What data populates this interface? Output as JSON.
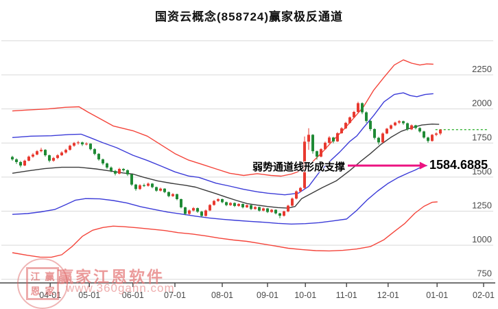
{
  "title": "国资云概念(858724)赢家极反通道",
  "annotation": {
    "text": "弱势通道线形成支撑",
    "value": "1584.6885",
    "points_to": "lower_blue_channel_line_end"
  },
  "watermark": {
    "brand": "赢家江恩软件",
    "url": "www.360gann.com",
    "seal_chars": [
      "江",
      "赢",
      "恩",
      "家"
    ]
  },
  "colors": {
    "up_candle": "#e8392f",
    "down_candle": "#1f8a35",
    "channel_red": "#f4443a",
    "channel_blue": "#3b3bd8",
    "channel_mid": "#3a3a3a",
    "grid": "#d9d9d9",
    "axis": "#444444",
    "tick_text": "#4a4a4a",
    "arrow": "#ec1380",
    "last_price": "#00a000",
    "background": "#ffffff"
  },
  "chart_data": {
    "type": "candlestick",
    "title": "国资云概念(858724)赢家极反通道",
    "legend": "none",
    "grid": "horizontal-only",
    "y_axis": {
      "min": 750,
      "max": 2500,
      "grid_step": 250,
      "grid_values": [
        2500,
        2250,
        2000,
        1750,
        1500,
        1250,
        1000,
        750
      ],
      "labels": [
        2250,
        2000,
        1750,
        1500,
        1250,
        1000,
        750
      ]
    },
    "x_ticks": [
      {
        "label": "04-01",
        "i": 9.2
      },
      {
        "label": "05-01",
        "i": 18.7
      },
      {
        "label": "06-01",
        "i": 29.3
      },
      {
        "label": "07-01",
        "i": 39.5
      },
      {
        "label": "08-01",
        "i": 51.0
      },
      {
        "label": "09-01",
        "i": 62.0
      },
      {
        "label": "10-01",
        "i": 71.2
      },
      {
        "label": "11-01",
        "i": 81.2
      },
      {
        "label": "12-01",
        "i": 91.3
      },
      {
        "label": "01-01",
        "i": 103.2
      },
      {
        "label": "02-01",
        "i": 114.5
      }
    ],
    "candles_ohlc": [
      [
        1648,
        1656,
        1620,
        1630
      ],
      [
        1630,
        1638,
        1596,
        1610
      ],
      [
        1610,
        1618,
        1572,
        1585
      ],
      [
        1585,
        1628,
        1580,
        1620
      ],
      [
        1620,
        1658,
        1615,
        1650
      ],
      [
        1650,
        1676,
        1642,
        1665
      ],
      [
        1665,
        1698,
        1660,
        1690
      ],
      [
        1690,
        1715,
        1682,
        1700
      ],
      [
        1700,
        1705,
        1650,
        1660
      ],
      [
        1660,
        1665,
        1608,
        1620
      ],
      [
        1620,
        1648,
        1612,
        1640
      ],
      [
        1640,
        1668,
        1632,
        1660
      ],
      [
        1660,
        1690,
        1655,
        1680
      ],
      [
        1680,
        1708,
        1672,
        1700
      ],
      [
        1700,
        1738,
        1695,
        1730
      ],
      [
        1730,
        1758,
        1722,
        1750
      ],
      [
        1750,
        1766,
        1738,
        1755
      ],
      [
        1755,
        1760,
        1728,
        1740
      ],
      [
        1740,
        1755,
        1732,
        1745
      ],
      [
        1745,
        1748,
        1696,
        1705
      ],
      [
        1705,
        1712,
        1660,
        1670
      ],
      [
        1670,
        1676,
        1620,
        1630
      ],
      [
        1630,
        1636,
        1588,
        1600
      ],
      [
        1600,
        1606,
        1560,
        1570
      ],
      [
        1570,
        1578,
        1535,
        1545
      ],
      [
        1545,
        1552,
        1512,
        1525
      ],
      [
        1525,
        1568,
        1520,
        1560
      ],
      [
        1560,
        1566,
        1540,
        1550
      ],
      [
        1550,
        1556,
        1508,
        1520
      ],
      [
        1520,
        1524,
        1436,
        1445
      ],
      [
        1445,
        1450,
        1400,
        1412
      ],
      [
        1412,
        1448,
        1406,
        1440
      ],
      [
        1440,
        1452,
        1428,
        1436
      ],
      [
        1436,
        1460,
        1430,
        1452
      ],
      [
        1452,
        1456,
        1418,
        1426
      ],
      [
        1426,
        1430,
        1392,
        1400
      ],
      [
        1400,
        1422,
        1394,
        1415
      ],
      [
        1415,
        1418,
        1382,
        1390
      ],
      [
        1390,
        1394,
        1352,
        1360
      ],
      [
        1360,
        1382,
        1354,
        1375
      ],
      [
        1375,
        1378,
        1330,
        1338
      ],
      [
        1338,
        1342,
        1270,
        1278
      ],
      [
        1278,
        1282,
        1220,
        1230
      ],
      [
        1230,
        1262,
        1222,
        1255
      ],
      [
        1255,
        1280,
        1248,
        1272
      ],
      [
        1272,
        1276,
        1238,
        1246
      ],
      [
        1246,
        1252,
        1205,
        1215
      ],
      [
        1215,
        1262,
        1210,
        1255
      ],
      [
        1255,
        1302,
        1250,
        1295
      ],
      [
        1295,
        1332,
        1290,
        1325
      ],
      [
        1325,
        1345,
        1318,
        1338
      ],
      [
        1338,
        1342,
        1308,
        1316
      ],
      [
        1316,
        1320,
        1286,
        1294
      ],
      [
        1294,
        1316,
        1288,
        1310
      ],
      [
        1310,
        1314,
        1280,
        1288
      ],
      [
        1288,
        1308,
        1282,
        1303
      ],
      [
        1303,
        1306,
        1270,
        1278
      ],
      [
        1278,
        1300,
        1273,
        1294
      ],
      [
        1294,
        1297,
        1258,
        1266
      ],
      [
        1266,
        1286,
        1260,
        1280
      ],
      [
        1280,
        1283,
        1246,
        1254
      ],
      [
        1254,
        1276,
        1248,
        1270
      ],
      [
        1270,
        1273,
        1236,
        1244
      ],
      [
        1244,
        1266,
        1238,
        1260
      ],
      [
        1260,
        1263,
        1226,
        1234
      ],
      [
        1234,
        1238,
        1198,
        1216
      ],
      [
        1216,
        1254,
        1210,
        1248
      ],
      [
        1248,
        1296,
        1242,
        1290
      ],
      [
        1290,
        1350,
        1284,
        1342
      ],
      [
        1342,
        1402,
        1336,
        1395
      ],
      [
        1395,
        1428,
        1388,
        1420
      ],
      [
        1420,
        1798,
        1412,
        1760
      ],
      [
        1760,
        1858,
        1700,
        1810
      ],
      [
        1810,
        1815,
        1672,
        1690
      ],
      [
        1690,
        1695,
        1628,
        1650
      ],
      [
        1650,
        1712,
        1645,
        1705
      ],
      [
        1705,
        1760,
        1700,
        1752
      ],
      [
        1752,
        1800,
        1745,
        1790
      ],
      [
        1790,
        1795,
        1748,
        1762
      ],
      [
        1762,
        1830,
        1758,
        1822
      ],
      [
        1822,
        1866,
        1818,
        1858
      ],
      [
        1858,
        1905,
        1852,
        1898
      ],
      [
        1898,
        1945,
        1892,
        1938
      ],
      [
        1938,
        1986,
        1932,
        1978
      ],
      [
        1978,
        2052,
        1972,
        2042
      ],
      [
        2042,
        2048,
        1962,
        1975
      ],
      [
        1975,
        1982,
        1898,
        1912
      ],
      [
        1912,
        1918,
        1838,
        1852
      ],
      [
        1852,
        1858,
        1775,
        1788
      ],
      [
        1788,
        1795,
        1738,
        1755
      ],
      [
        1755,
        1828,
        1750,
        1820
      ],
      [
        1820,
        1860,
        1815,
        1855
      ],
      [
        1855,
        1886,
        1848,
        1880
      ],
      [
        1880,
        1906,
        1874,
        1900
      ],
      [
        1900,
        1918,
        1890,
        1910
      ],
      [
        1910,
        1914,
        1884,
        1895
      ],
      [
        1895,
        1900,
        1840,
        1850
      ],
      [
        1850,
        1886,
        1845,
        1880
      ],
      [
        1880,
        1884,
        1850,
        1860
      ],
      [
        1860,
        1865,
        1826,
        1835
      ],
      [
        1835,
        1840,
        1782,
        1790
      ],
      [
        1790,
        1796,
        1752,
        1765
      ],
      [
        1765,
        1816,
        1760,
        1810
      ],
      [
        1810,
        1828,
        1800,
        1820
      ],
      [
        1820,
        1852,
        1808,
        1848
      ]
    ],
    "lines": {
      "upper_red": [
        [
          0,
          1985
        ],
        [
          3.7,
          1992
        ],
        [
          8.7,
          2000
        ],
        [
          12.8,
          2012
        ],
        [
          16.2,
          2016
        ],
        [
          18.3,
          1978
        ],
        [
          21.2,
          1930
        ],
        [
          24.5,
          1875
        ],
        [
          29.3,
          1840
        ],
        [
          32.8,
          1800
        ],
        [
          36.2,
          1735
        ],
        [
          39.5,
          1672
        ],
        [
          42.8,
          1625
        ],
        [
          46.2,
          1592
        ],
        [
          49.5,
          1560
        ],
        [
          52.8,
          1528
        ],
        [
          56.2,
          1512
        ],
        [
          59.5,
          1525
        ],
        [
          62.8,
          1512
        ],
        [
          65.3,
          1507
        ],
        [
          67.8,
          1522
        ],
        [
          70.3,
          1548
        ],
        [
          72.8,
          1608
        ],
        [
          75.3,
          1682
        ],
        [
          77.8,
          1765
        ],
        [
          80.3,
          1842
        ],
        [
          82.8,
          1928
        ],
        [
          85.3,
          2015
        ],
        [
          87.8,
          2138
        ],
        [
          90.3,
          2232
        ],
        [
          92.8,
          2322
        ],
        [
          95,
          2360
        ],
        [
          97,
          2336
        ],
        [
          99,
          2322
        ],
        [
          100.7,
          2330
        ],
        [
          102.3,
          2328
        ]
      ],
      "upper_blue": [
        [
          0,
          1790
        ],
        [
          4.5,
          1800
        ],
        [
          9.5,
          1803
        ],
        [
          13.7,
          1812
        ],
        [
          16.7,
          1815
        ],
        [
          19,
          1788
        ],
        [
          22,
          1752
        ],
        [
          25.3,
          1716
        ],
        [
          29.3,
          1660
        ],
        [
          32.8,
          1622
        ],
        [
          36.2,
          1580
        ],
        [
          39.5,
          1538
        ],
        [
          42.8,
          1508
        ],
        [
          45.3,
          1498
        ],
        [
          49.5,
          1455
        ],
        [
          52.8,
          1434
        ],
        [
          56.2,
          1410
        ],
        [
          59.5,
          1392
        ],
        [
          62,
          1382
        ],
        [
          66.2,
          1370
        ],
        [
          69.5,
          1382
        ],
        [
          72,
          1432
        ],
        [
          74.5,
          1532
        ],
        [
          77,
          1612
        ],
        [
          79.5,
          1682
        ],
        [
          82,
          1762
        ],
        [
          83.7,
          1802
        ],
        [
          85.3,
          1862
        ],
        [
          87.8,
          1952
        ],
        [
          90.3,
          2052
        ],
        [
          92.8,
          2106
        ],
        [
          95,
          2118
        ],
        [
          96.7,
          2098
        ],
        [
          98.3,
          2090
        ],
        [
          100.3,
          2106
        ],
        [
          102.3,
          2112
        ]
      ],
      "middle": [
        [
          0,
          1528
        ],
        [
          3.7,
          1545
        ],
        [
          7.8,
          1562
        ],
        [
          12,
          1572
        ],
        [
          16.2,
          1572
        ],
        [
          20.3,
          1560
        ],
        [
          23.7,
          1545
        ],
        [
          27,
          1530
        ],
        [
          29.3,
          1522
        ],
        [
          32,
          1498
        ],
        [
          35.3,
          1472
        ],
        [
          38.7,
          1454
        ],
        [
          42,
          1440
        ],
        [
          44.5,
          1426
        ],
        [
          47,
          1402
        ],
        [
          49.5,
          1378
        ],
        [
          52,
          1352
        ],
        [
          54.5,
          1328
        ],
        [
          57,
          1306
        ],
        [
          59.5,
          1294
        ],
        [
          62,
          1284
        ],
        [
          64.5,
          1276
        ],
        [
          67,
          1272
        ],
        [
          68.7,
          1284
        ],
        [
          70.3,
          1342
        ],
        [
          72.8,
          1382
        ],
        [
          75.3,
          1422
        ],
        [
          78.7,
          1472
        ],
        [
          82,
          1548
        ],
        [
          84.5,
          1612
        ],
        [
          87,
          1672
        ],
        [
          89.5,
          1738
        ],
        [
          92,
          1792
        ],
        [
          94.5,
          1836
        ],
        [
          97,
          1862
        ],
        [
          99.5,
          1882
        ],
        [
          102,
          1889
        ],
        [
          103.7,
          1887
        ]
      ],
      "lower_blue": [
        [
          0,
          1226
        ],
        [
          3.7,
          1232
        ],
        [
          7,
          1245
        ],
        [
          10.3,
          1262
        ],
        [
          12.8,
          1295
        ],
        [
          15.3,
          1330
        ],
        [
          17.8,
          1342
        ],
        [
          21.2,
          1340
        ],
        [
          24.5,
          1328
        ],
        [
          27.8,
          1310
        ],
        [
          31.2,
          1282
        ],
        [
          34.5,
          1262
        ],
        [
          37.8,
          1243
        ],
        [
          41.2,
          1228
        ],
        [
          44.5,
          1213
        ],
        [
          47.8,
          1200
        ],
        [
          51.2,
          1190
        ],
        [
          54.5,
          1182
        ],
        [
          57.8,
          1175
        ],
        [
          61.2,
          1168
        ],
        [
          64.5,
          1160
        ],
        [
          67.8,
          1155
        ],
        [
          71.2,
          1158
        ],
        [
          74.5,
          1165
        ],
        [
          77.8,
          1178
        ],
        [
          81.2,
          1192
        ],
        [
          83.7,
          1256
        ],
        [
          86.2,
          1332
        ],
        [
          88.7,
          1396
        ],
        [
          91.2,
          1452
        ],
        [
          93.7,
          1496
        ],
        [
          96.2,
          1530
        ],
        [
          97.8,
          1550
        ],
        [
          99.5,
          1576
        ],
        [
          100.8,
          1584.7
        ]
      ],
      "lower_red": [
        [
          0,
          945
        ],
        [
          3.7,
          926
        ],
        [
          6.7,
          913
        ],
        [
          9.5,
          912
        ],
        [
          12,
          930
        ],
        [
          14.5,
          990
        ],
        [
          17,
          1065
        ],
        [
          19.5,
          1110
        ],
        [
          22,
          1130
        ],
        [
          24.5,
          1140
        ],
        [
          27,
          1136
        ],
        [
          30.3,
          1128
        ],
        [
          33.7,
          1118
        ],
        [
          37,
          1108
        ],
        [
          40.3,
          1092
        ],
        [
          43.7,
          1082
        ],
        [
          47,
          1068
        ],
        [
          50.3,
          1052
        ],
        [
          53.7,
          1038
        ],
        [
          57,
          1028
        ],
        [
          60.3,
          1012
        ],
        [
          63.7,
          995
        ],
        [
          67,
          978
        ],
        [
          70.3,
          968
        ],
        [
          73.7,
          960
        ],
        [
          77,
          958
        ],
        [
          80.3,
          962
        ],
        [
          83.7,
          972
        ],
        [
          87,
          990
        ],
        [
          90.3,
          1040
        ],
        [
          92.8,
          1100
        ],
        [
          95.3,
          1158
        ],
        [
          97.8,
          1235
        ],
        [
          100,
          1285
        ],
        [
          102,
          1315
        ],
        [
          103.3,
          1318
        ]
      ]
    },
    "last_price_line": {
      "value": 1848,
      "from_i": 102.8,
      "to_i": 115.7,
      "style": "dashed"
    },
    "support_level": 1584.6885,
    "arrow": {
      "y_value": 1584.6885,
      "from_i": 81.5,
      "to_i": 100.8
    }
  }
}
